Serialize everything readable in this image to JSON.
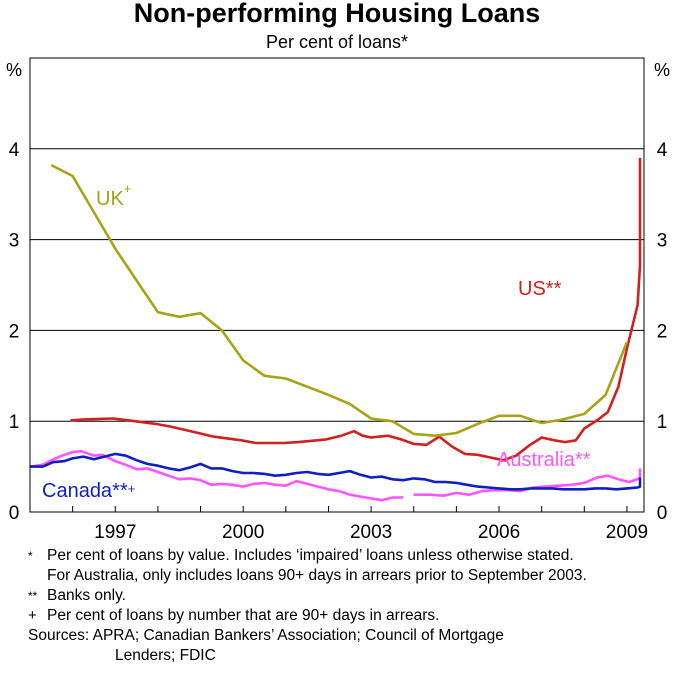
{
  "chart_data": {
    "type": "line",
    "title": "Non-performing Housing Loans",
    "subtitle": "Per cent of loans*",
    "ylabel_left": "%",
    "ylabel_right": "%",
    "ylim": [
      0,
      5
    ],
    "xlim": [
      1995.0,
      2009.4
    ],
    "yticks": [
      0,
      1,
      2,
      3,
      4
    ],
    "xticks": [
      1997,
      2000,
      2003,
      2006,
      2009
    ],
    "ytick_labels": [
      "0",
      "1",
      "2",
      "3",
      "4"
    ],
    "xtick_labels": [
      "1997",
      "2000",
      "2003",
      "2006",
      "2009"
    ],
    "grid": true,
    "series": [
      {
        "name": "UK",
        "label_marker": "+",
        "color": "#a8a316",
        "points": [
          [
            1995.5,
            3.82
          ],
          [
            1996.0,
            3.7
          ],
          [
            1996.5,
            3.3
          ],
          [
            1997.0,
            2.9
          ],
          [
            1997.5,
            2.55
          ],
          [
            1998.0,
            2.2
          ],
          [
            1998.5,
            2.15
          ],
          [
            1999.0,
            2.19
          ],
          [
            1999.5,
            2.0
          ],
          [
            2000.0,
            1.67
          ],
          [
            2000.5,
            1.5
          ],
          [
            2001.0,
            1.47
          ],
          [
            2001.5,
            1.38
          ],
          [
            2002.0,
            1.29
          ],
          [
            2002.5,
            1.19
          ],
          [
            2003.0,
            1.03
          ],
          [
            2003.5,
            1.0
          ],
          [
            2004.0,
            0.86
          ],
          [
            2004.5,
            0.84
          ],
          [
            2005.0,
            0.87
          ],
          [
            2005.5,
            0.97
          ],
          [
            2006.0,
            1.06
          ],
          [
            2006.5,
            1.06
          ],
          [
            2007.0,
            0.98
          ],
          [
            2007.5,
            1.02
          ],
          [
            2008.0,
            1.08
          ],
          [
            2008.5,
            1.29
          ],
          [
            2009.0,
            1.87
          ]
        ]
      },
      {
        "name": "US",
        "label_marker": "**",
        "color": "#d21f1f",
        "points": [
          [
            1995.95,
            1.01
          ],
          [
            1996.3,
            1.02
          ],
          [
            1996.95,
            1.03
          ],
          [
            1997.3,
            1.01
          ],
          [
            1997.95,
            0.97
          ],
          [
            1998.3,
            0.94
          ],
          [
            1998.95,
            0.87
          ],
          [
            1999.3,
            0.83
          ],
          [
            1999.95,
            0.79
          ],
          [
            2000.3,
            0.76
          ],
          [
            2000.95,
            0.76
          ],
          [
            2001.3,
            0.77
          ],
          [
            2001.95,
            0.8
          ],
          [
            2002.3,
            0.84
          ],
          [
            2002.6,
            0.89
          ],
          [
            2002.8,
            0.84
          ],
          [
            2003.0,
            0.82
          ],
          [
            2003.4,
            0.84
          ],
          [
            2003.7,
            0.8
          ],
          [
            2004.0,
            0.75
          ],
          [
            2004.3,
            0.74
          ],
          [
            2004.6,
            0.83
          ],
          [
            2004.9,
            0.72
          ],
          [
            2005.2,
            0.64
          ],
          [
            2005.5,
            0.63
          ],
          [
            2005.8,
            0.6
          ],
          [
            2006.1,
            0.57
          ],
          [
            2006.4,
            0.62
          ],
          [
            2006.7,
            0.73
          ],
          [
            2007.0,
            0.82
          ],
          [
            2007.3,
            0.79
          ],
          [
            2007.55,
            0.77
          ],
          [
            2007.8,
            0.79
          ],
          [
            2008.0,
            0.92
          ],
          [
            2008.3,
            1.01
          ],
          [
            2008.55,
            1.1
          ],
          [
            2008.8,
            1.38
          ],
          [
            2009.0,
            1.8
          ],
          [
            2009.25,
            2.28
          ],
          [
            2009.5,
            2.72
          ],
          [
            2009.75,
            3.05
          ],
          [
            2009.95,
            3.9
          ]
        ]
      },
      {
        "name": "Australia",
        "label_marker": "**",
        "color": "#ff55ff",
        "points": [
          [
            1995.0,
            0.5
          ],
          [
            1995.3,
            0.52
          ],
          [
            1995.55,
            0.58
          ],
          [
            1995.75,
            0.62
          ],
          [
            1996.0,
            0.66
          ],
          [
            1996.2,
            0.67
          ],
          [
            1996.5,
            0.62
          ],
          [
            1996.7,
            0.63
          ],
          [
            1997.0,
            0.56
          ],
          [
            1997.25,
            0.52
          ],
          [
            1997.5,
            0.47
          ],
          [
            1997.75,
            0.48
          ],
          [
            1998.0,
            0.44
          ],
          [
            1998.25,
            0.4
          ],
          [
            1998.5,
            0.36
          ],
          [
            1998.75,
            0.37
          ],
          [
            1999.0,
            0.35
          ],
          [
            1999.25,
            0.3
          ],
          [
            1999.5,
            0.31
          ],
          [
            1999.75,
            0.3
          ],
          [
            2000.0,
            0.28
          ],
          [
            2000.25,
            0.31
          ],
          [
            2000.5,
            0.32
          ],
          [
            2000.75,
            0.3
          ],
          [
            2001.0,
            0.29
          ],
          [
            2001.25,
            0.34
          ],
          [
            2001.5,
            0.31
          ],
          [
            2001.75,
            0.28
          ],
          [
            2002.0,
            0.25
          ],
          [
            2002.25,
            0.23
          ],
          [
            2002.5,
            0.19
          ],
          [
            2002.75,
            0.17
          ],
          [
            2003.0,
            0.15
          ],
          [
            2003.25,
            0.13
          ],
          [
            2003.5,
            0.16
          ],
          [
            2003.75,
            0.16
          ],
          [
            null,
            null
          ],
          [
            2004.0,
            0.19
          ],
          [
            2004.4,
            0.19
          ],
          [
            2004.7,
            0.18
          ],
          [
            2005.0,
            0.21
          ],
          [
            2005.3,
            0.19
          ],
          [
            2005.6,
            0.23
          ],
          [
            2005.9,
            0.24
          ],
          [
            2006.2,
            0.24
          ],
          [
            2006.5,
            0.23
          ],
          [
            2006.8,
            0.27
          ],
          [
            2007.1,
            0.28
          ],
          [
            2007.4,
            0.29
          ],
          [
            2007.7,
            0.3
          ],
          [
            2008.0,
            0.32
          ],
          [
            2008.3,
            0.38
          ],
          [
            2008.55,
            0.4
          ],
          [
            2008.8,
            0.36
          ],
          [
            2009.05,
            0.33
          ],
          [
            2009.3,
            0.37
          ],
          [
            2009.55,
            0.4
          ],
          [
            2009.8,
            0.44
          ],
          [
            2010.0,
            0.48
          ]
        ]
      },
      {
        "name": "Canada",
        "label_marker": "**+",
        "color": "#0f1fc0",
        "points": [
          [
            1995.0,
            0.5
          ],
          [
            1995.3,
            0.5
          ],
          [
            1995.55,
            0.55
          ],
          [
            1995.8,
            0.56
          ],
          [
            1996.0,
            0.59
          ],
          [
            1996.25,
            0.61
          ],
          [
            1996.5,
            0.58
          ],
          [
            1996.75,
            0.61
          ],
          [
            1997.0,
            0.64
          ],
          [
            1997.25,
            0.62
          ],
          [
            1997.5,
            0.57
          ],
          [
            1997.75,
            0.53
          ],
          [
            1998.0,
            0.51
          ],
          [
            1998.25,
            0.48
          ],
          [
            1998.5,
            0.46
          ],
          [
            1998.75,
            0.49
          ],
          [
            1999.0,
            0.53
          ],
          [
            1999.25,
            0.48
          ],
          [
            1999.5,
            0.48
          ],
          [
            1999.75,
            0.45
          ],
          [
            2000.0,
            0.43
          ],
          [
            2000.25,
            0.43
          ],
          [
            2000.5,
            0.42
          ],
          [
            2000.75,
            0.4
          ],
          [
            2001.0,
            0.41
          ],
          [
            2001.25,
            0.43
          ],
          [
            2001.5,
            0.44
          ],
          [
            2001.75,
            0.42
          ],
          [
            2002.0,
            0.41
          ],
          [
            2002.25,
            0.43
          ],
          [
            2002.5,
            0.45
          ],
          [
            2002.75,
            0.41
          ],
          [
            2003.0,
            0.38
          ],
          [
            2003.25,
            0.39
          ],
          [
            2003.5,
            0.36
          ],
          [
            2003.75,
            0.35
          ],
          [
            2004.0,
            0.37
          ],
          [
            2004.25,
            0.36
          ],
          [
            2004.5,
            0.33
          ],
          [
            2004.75,
            0.33
          ],
          [
            2005.0,
            0.32
          ],
          [
            2005.25,
            0.3
          ],
          [
            2005.5,
            0.28
          ],
          [
            2005.75,
            0.27
          ],
          [
            2006.0,
            0.26
          ],
          [
            2006.25,
            0.25
          ],
          [
            2006.5,
            0.25
          ],
          [
            2006.75,
            0.26
          ],
          [
            2007.0,
            0.26
          ],
          [
            2007.25,
            0.26
          ],
          [
            2007.5,
            0.25
          ],
          [
            2007.75,
            0.25
          ],
          [
            2008.0,
            0.25
          ],
          [
            2008.25,
            0.26
          ],
          [
            2008.5,
            0.26
          ],
          [
            2008.75,
            0.25
          ],
          [
            2009.0,
            0.26
          ],
          [
            2009.25,
            0.27
          ],
          [
            2009.5,
            0.28
          ],
          [
            2009.75,
            0.33
          ],
          [
            2010.0,
            0.38
          ]
        ]
      }
    ]
  },
  "notes": [
    {
      "marker": "*",
      "lines": [
        "Per cent of loans by value. Includes ‘impaired’ loans unless otherwise stated.",
        "For Australia, only includes loans 90+ days in arrears prior to September 2003."
      ]
    },
    {
      "marker": "**",
      "lines": [
        "Banks only."
      ]
    },
    {
      "marker": "+",
      "lines": [
        "Per cent of loans by number that are 90+ days in arrears."
      ]
    }
  ],
  "sources": {
    "line1": "Sources: APRA; Canadian Bankers’ Association; Council of Mortgage",
    "line2": "Lenders; FDIC"
  }
}
